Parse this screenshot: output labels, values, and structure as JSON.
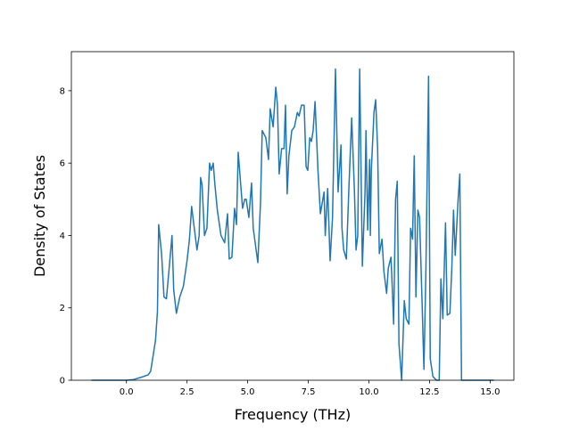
{
  "chart_data": {
    "type": "line",
    "x_label": "Frequency (THz)",
    "y_label": "Density of States",
    "xlim": [
      -2.27,
      15.98
    ],
    "ylim": [
      0,
      9.08
    ],
    "xticks": [
      {
        "value": 0,
        "label": "0.0"
      },
      2.5,
      {
        "value": 5,
        "label": "5.0"
      },
      7.5,
      {
        "value": 10,
        "label": "10.0"
      },
      12.5,
      {
        "value": 15,
        "label": "15.0"
      }
    ],
    "yticks": [
      0,
      2,
      4,
      6,
      8
    ],
    "series": [
      {
        "color": "#1f77b4",
        "x": [
          -1.44,
          0,
          0.3,
          0.6,
          0.9,
          1.0,
          1.2,
          1.28,
          1.33,
          1.45,
          1.55,
          1.65,
          1.75,
          1.88,
          1.95,
          2.06,
          2.2,
          2.35,
          2.5,
          2.6,
          2.69,
          2.8,
          2.91,
          3.0,
          3.06,
          3.12,
          3.22,
          3.32,
          3.43,
          3.5,
          3.58,
          3.65,
          3.75,
          3.9,
          4.05,
          4.17,
          4.24,
          4.35,
          4.46,
          4.54,
          4.61,
          4.79,
          4.88,
          4.94,
          5.05,
          5.16,
          5.23,
          5.42,
          5.53,
          5.6,
          5.75,
          5.86,
          5.93,
          6.05,
          6.16,
          6.23,
          6.3,
          6.4,
          6.5,
          6.56,
          6.63,
          6.7,
          6.82,
          6.93,
          7.05,
          7.12,
          7.22,
          7.33,
          7.41,
          7.48,
          7.56,
          7.63,
          7.7,
          7.78,
          7.9,
          8.0,
          8.15,
          8.2,
          8.3,
          8.4,
          8.5,
          8.62,
          8.73,
          8.85,
          8.89,
          8.96,
          9.07,
          9.18,
          9.29,
          9.4,
          9.47,
          9.54,
          9.62,
          9.73,
          9.84,
          9.88,
          9.95,
          10.03,
          10.06,
          10.1,
          10.21,
          10.28,
          10.36,
          10.43,
          10.54,
          10.62,
          10.73,
          10.8,
          10.91,
          10.95,
          11.02,
          11.1,
          11.17,
          11.24,
          11.35,
          11.46,
          11.54,
          11.65,
          11.72,
          11.8,
          11.87,
          11.94,
          12.02,
          12.09,
          12.2,
          12.27,
          12.35,
          12.46,
          12.53,
          12.64,
          12.79,
          12.9,
          12.97,
          13.05,
          13.16,
          13.23,
          13.34,
          13.42,
          13.49,
          13.56,
          13.68,
          13.75,
          13.82,
          15.15
        ],
        "values": [
          0,
          0,
          0.02,
          0.08,
          0.15,
          0.25,
          1.1,
          1.9,
          4.3,
          3.5,
          2.3,
          2.25,
          3.0,
          4.0,
          2.5,
          1.85,
          2.3,
          2.6,
          3.3,
          3.9,
          4.8,
          4.2,
          3.6,
          4.0,
          5.6,
          5.4,
          4.0,
          4.2,
          6.0,
          5.8,
          6.0,
          5.4,
          4.7,
          4.0,
          3.8,
          4.6,
          3.35,
          3.4,
          4.75,
          4.3,
          6.3,
          4.75,
          5.0,
          5.0,
          4.5,
          5.45,
          4.2,
          3.25,
          4.9,
          6.9,
          6.7,
          6.1,
          7.5,
          7.0,
          8.1,
          7.6,
          5.7,
          6.4,
          6.4,
          7.6,
          5.15,
          6.2,
          6.9,
          7.0,
          7.4,
          7.3,
          7.6,
          7.6,
          5.9,
          5.8,
          6.7,
          6.6,
          6.9,
          7.7,
          5.8,
          4.6,
          5.2,
          4.0,
          5.3,
          3.3,
          4.5,
          8.6,
          5.2,
          6.5,
          4.2,
          3.6,
          3.35,
          5.4,
          7.25,
          5.3,
          3.6,
          4.0,
          8.6,
          3.15,
          5.2,
          6.9,
          4.15,
          6.1,
          4.0,
          5.8,
          7.4,
          7.75,
          6.4,
          3.5,
          3.9,
          3.0,
          2.4,
          3.1,
          3.4,
          2.8,
          1.55,
          5.0,
          5.5,
          1.0,
          0,
          2.2,
          1.7,
          1.55,
          4.2,
          3.9,
          6.2,
          2.3,
          4.7,
          4.5,
          2.0,
          0.3,
          3.0,
          8.4,
          0.6,
          0.1,
          0,
          0,
          2.8,
          1.7,
          4.35,
          1.8,
          1.85,
          3.1,
          4.7,
          3.45,
          5.0,
          5.7,
          0,
          0
        ]
      }
    ]
  }
}
